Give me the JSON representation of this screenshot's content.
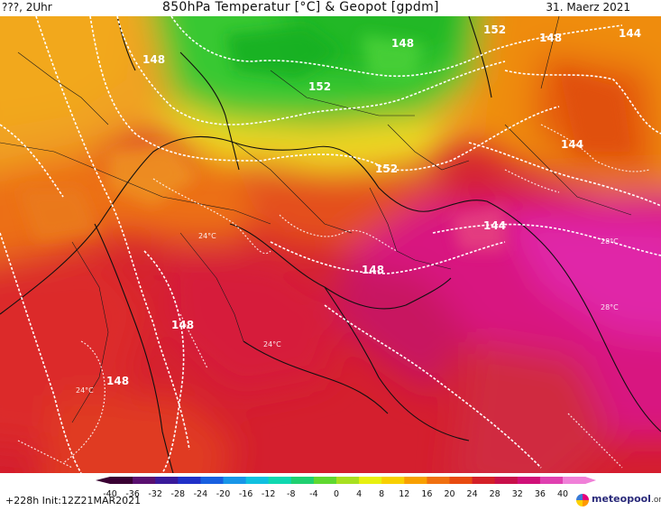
{
  "header": {
    "left_label": "???, 2Uhr",
    "title": "850hPa Temperatur [°C] & Geopot [gpdm]",
    "date": "31. Maerz 2021"
  },
  "map": {
    "contour_labels": [
      {
        "text": "148",
        "kind": "geopotential"
      },
      {
        "text": "152",
        "kind": "geopotential"
      },
      {
        "text": "148",
        "kind": "geopotential"
      },
      {
        "text": "152",
        "kind": "geopotential"
      },
      {
        "text": "148",
        "kind": "geopotential"
      },
      {
        "text": "144",
        "kind": "geopotential"
      },
      {
        "text": "144",
        "kind": "geopotential"
      },
      {
        "text": "152",
        "kind": "geopotential"
      },
      {
        "text": "144",
        "kind": "geopotential"
      },
      {
        "text": "148",
        "kind": "geopotential"
      },
      {
        "text": "148",
        "kind": "geopotential"
      },
      {
        "text": "148",
        "kind": "geopotential"
      },
      {
        "text": "24°C",
        "kind": "temperature"
      },
      {
        "text": "28°C",
        "kind": "temperature"
      },
      {
        "text": "28°C",
        "kind": "temperature"
      },
      {
        "text": "24°C",
        "kind": "temperature"
      },
      {
        "text": "24°C",
        "kind": "temperature"
      }
    ]
  },
  "colorbar": {
    "ticks": [
      "-40",
      "-36",
      "-32",
      "-28",
      "-24",
      "-20",
      "-16",
      "-12",
      "-8",
      "-4",
      "0",
      "4",
      "8",
      "12",
      "16",
      "20",
      "24",
      "28",
      "32",
      "36",
      "40"
    ],
    "colors": [
      "#3a0033",
      "#5a1070",
      "#3a1a9a",
      "#2030c8",
      "#1860e0",
      "#1896e8",
      "#10c0e0",
      "#10d8b0",
      "#20d070",
      "#60d830",
      "#a8e020",
      "#e8f010",
      "#f8d000",
      "#f8a000",
      "#f07010",
      "#e84a10",
      "#d42028",
      "#c8104a",
      "#d01078",
      "#e040b0",
      "#f080d8"
    ]
  },
  "footer": {
    "run_info": "+228h  Init:12Z21MAR2021",
    "logo_text": "meteopool",
    "logo_tld": ".org"
  }
}
